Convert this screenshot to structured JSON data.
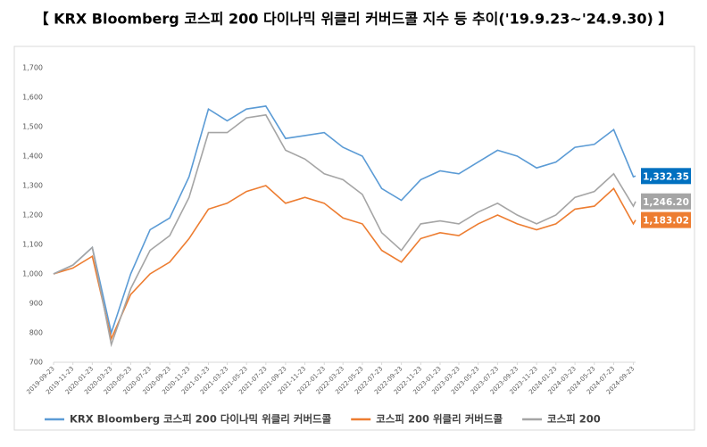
{
  "chart_data": {
    "type": "line",
    "title": "【 KRX Bloomberg 코스피 200 다이나믹 위클리 커버드콜 지수 등 추이('19.9.23~'24.9.30) 】",
    "x": [
      "2019-09-23",
      "2019-11-23",
      "2020-01-23",
      "2020-03-23",
      "2020-05-23",
      "2020-07-23",
      "2020-09-23",
      "2020-11-23",
      "2021-01-23",
      "2021-03-23",
      "2021-05-23",
      "2021-07-23",
      "2021-09-23",
      "2021-11-23",
      "2022-01-23",
      "2022-03-23",
      "2022-05-23",
      "2022-07-23",
      "2022-09-23",
      "2022-11-23",
      "2023-01-23",
      "2023-03-23",
      "2023-05-23",
      "2023-07-23",
      "2023-09-23",
      "2023-11-23",
      "2024-01-23",
      "2024-03-23",
      "2024-05-23",
      "2024-07-23",
      "2024-09-23",
      "2024-09-30"
    ],
    "xlim": [
      "2019-09-23",
      "2024-09-30"
    ],
    "xticks": [
      "2019-09-23",
      "2019-11-23",
      "2020-01-23",
      "2020-03-23",
      "2020-05-23",
      "2020-07-23",
      "2020-09-23",
      "2020-11-23",
      "2021-01-23",
      "2021-03-23",
      "2021-05-23",
      "2021-07-23",
      "2021-09-23",
      "2021-11-23",
      "2022-01-23",
      "2022-03-23",
      "2022-05-23",
      "2022-07-23",
      "2022-09-23",
      "2022-11-23",
      "2023-01-23",
      "2023-03-23",
      "2023-05-23",
      "2023-07-23",
      "2023-09-23",
      "2023-11-23",
      "2024-01-23",
      "2024-03-23",
      "2024-05-23",
      "2024-07-23",
      "2024-09-23"
    ],
    "ylim": [
      700,
      1700
    ],
    "yticks": [
      700,
      800,
      900,
      {
        "value": 1000,
        "label": "1,000"
      },
      {
        "value": 1100,
        "label": "1,100"
      },
      {
        "value": 1200,
        "label": "1,200"
      },
      {
        "value": 1300,
        "label": "1,300"
      },
      {
        "value": 1400,
        "label": "1,400"
      },
      {
        "value": 1500,
        "label": "1,500"
      },
      {
        "value": 1600,
        "label": "1,600"
      },
      {
        "value": 1700,
        "label": "1,700"
      }
    ],
    "grid": false,
    "legend": "bottom",
    "series": [
      {
        "name": "KRX Bloomberg 코스피 200 다이나믹 위클리 커버드콜",
        "color": "#5b9bd5",
        "values": [
          1000,
          1030,
          1090,
          800,
          1000,
          1150,
          1190,
          1330,
          1560,
          1520,
          1560,
          1570,
          1460,
          1470,
          1480,
          1430,
          1400,
          1290,
          1250,
          1320,
          1350,
          1340,
          1380,
          1420,
          1400,
          1360,
          1380,
          1430,
          1440,
          1490,
          1330,
          1332.35
        ],
        "value_labels": [
          null,
          null,
          null,
          null,
          null,
          null,
          null,
          null,
          null,
          null,
          null,
          null,
          null,
          null,
          null,
          null,
          null,
          null,
          null,
          null,
          null,
          null,
          null,
          null,
          null,
          null,
          null,
          null,
          null,
          null,
          null,
          "1,332.35"
        ],
        "label_color": "#0070c0"
      },
      {
        "name": "코스피 200 위클리 커버드콜",
        "color": "#ed7d31",
        "values": [
          1000,
          1020,
          1060,
          780,
          930,
          1000,
          1040,
          1120,
          1220,
          1240,
          1280,
          1300,
          1240,
          1260,
          1240,
          1190,
          1170,
          1080,
          1040,
          1120,
          1140,
          1130,
          1170,
          1200,
          1170,
          1150,
          1170,
          1220,
          1230,
          1290,
          1170,
          1183.02
        ],
        "value_labels": [
          null,
          null,
          null,
          null,
          null,
          null,
          null,
          null,
          null,
          null,
          null,
          null,
          null,
          null,
          null,
          null,
          null,
          null,
          null,
          null,
          null,
          null,
          null,
          null,
          null,
          null,
          null,
          null,
          null,
          null,
          null,
          "1,183.02"
        ],
        "label_color": "#ed7d31"
      },
      {
        "name": "코스피 200",
        "color": "#a5a5a5",
        "values": [
          1000,
          1030,
          1090,
          760,
          950,
          1080,
          1130,
          1260,
          1480,
          1480,
          1530,
          1540,
          1420,
          1390,
          1340,
          1320,
          1270,
          1140,
          1080,
          1170,
          1180,
          1170,
          1210,
          1240,
          1200,
          1170,
          1200,
          1260,
          1280,
          1340,
          1230,
          1246.2
        ],
        "value_labels": [
          null,
          null,
          null,
          null,
          null,
          null,
          null,
          null,
          null,
          null,
          null,
          null,
          null,
          null,
          null,
          null,
          null,
          null,
          null,
          null,
          null,
          null,
          null,
          null,
          null,
          null,
          null,
          null,
          null,
          null,
          null,
          "1,246.20"
        ],
        "label_color": "#a5a5a5"
      }
    ]
  }
}
